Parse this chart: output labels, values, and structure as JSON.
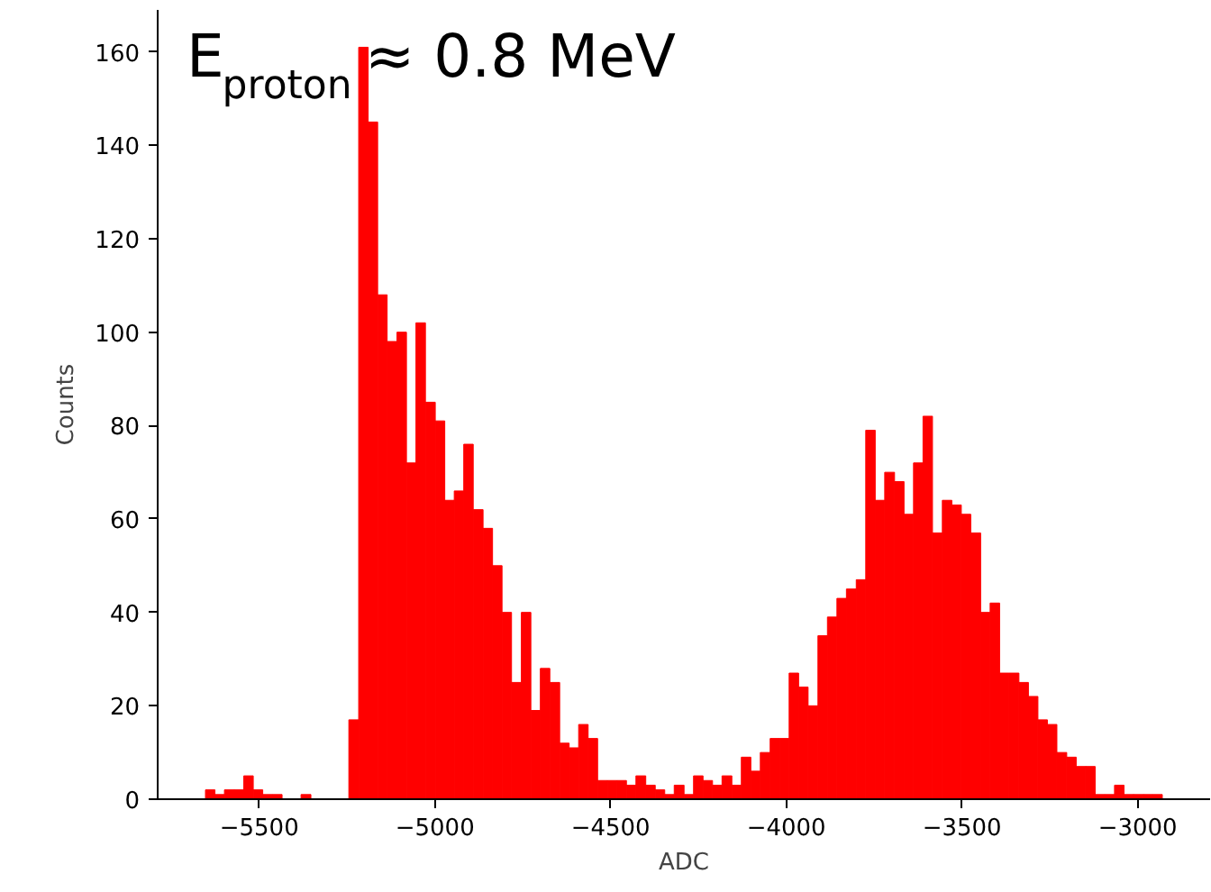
{
  "chart_data": {
    "type": "histogram",
    "xlabel": "ADC",
    "ylabel": "Counts",
    "annotations": [
      "E$_{proton}$ ≈ 0.8 MeV"
    ],
    "color": "#ff0000",
    "bins": [
      -5653,
      -5626,
      -5599,
      -5571,
      -5544,
      -5517,
      -5490,
      -5462,
      -5435,
      -5408,
      -5381,
      -5353,
      -5326,
      -5299,
      -5272,
      -5245,
      -5217,
      -5190,
      -5163,
      -5136,
      -5108,
      -5081,
      -5054,
      -5027,
      -4999,
      -4972,
      -4945,
      -4918,
      -4891,
      -4863,
      -4836,
      -4809,
      -4782,
      -4754,
      -4727,
      -4700,
      -4673,
      -4645,
      -4618,
      -4591,
      -4564,
      -4537,
      -4509,
      -4482,
      -4455,
      -4428,
      -4400,
      -4373,
      -4346,
      -4319,
      -4291,
      -4264,
      -4237,
      -4210,
      -4183,
      -4155,
      -4128,
      -4101,
      -4074,
      -4046,
      -4019,
      -3992,
      -3965,
      -3938,
      -3910,
      -3883,
      -3856,
      -3829,
      -3801,
      -3774,
      -3747,
      -3720,
      -3692,
      -3665,
      -3638,
      -3611,
      -3584,
      -3556,
      -3529,
      -3502,
      -3475,
      -3447,
      -3420,
      -3393,
      -3366,
      -3338,
      -3311,
      -3284,
      -3257,
      -3230,
      -3202,
      -3175,
      -3148,
      -3121,
      -3093,
      -3066,
      -3039,
      -3012,
      -2984,
      -2957,
      -2930
    ],
    "values": [
      2,
      1,
      2,
      2,
      5,
      2,
      1,
      1,
      0,
      0,
      1,
      0,
      0,
      0,
      0,
      17,
      161,
      145,
      108,
      98,
      100,
      72,
      102,
      85,
      81,
      64,
      66,
      76,
      62,
      58,
      50,
      40,
      25,
      40,
      19,
      28,
      25,
      12,
      11,
      16,
      13,
      4,
      4,
      4,
      3,
      5,
      3,
      2,
      1,
      3,
      1,
      5,
      4,
      3,
      5,
      3,
      9,
      6,
      10,
      13,
      13,
      27,
      24,
      20,
      35,
      39,
      43,
      45,
      47,
      79,
      64,
      70,
      68,
      61,
      72,
      82,
      57,
      64,
      63,
      61,
      57,
      40,
      42,
      27,
      27,
      25,
      22,
      17,
      16,
      10,
      9,
      7,
      7,
      1,
      1,
      3,
      1,
      1,
      1,
      1
    ],
    "xlim": [
      -5789,
      -2794
    ],
    "ylim": [
      0,
      169
    ],
    "xticks": [
      {
        "value": -5500,
        "label": "−5500"
      },
      {
        "value": -5000,
        "label": "−5000"
      },
      {
        "value": -4500,
        "label": "−4500"
      },
      {
        "value": -4000,
        "label": "−4000"
      },
      {
        "value": -3500,
        "label": "−3500"
      },
      {
        "value": -3000,
        "label": "−3000"
      }
    ],
    "yticks": [
      0,
      20,
      40,
      60,
      80,
      100,
      120,
      140,
      160
    ],
    "grid": false
  }
}
